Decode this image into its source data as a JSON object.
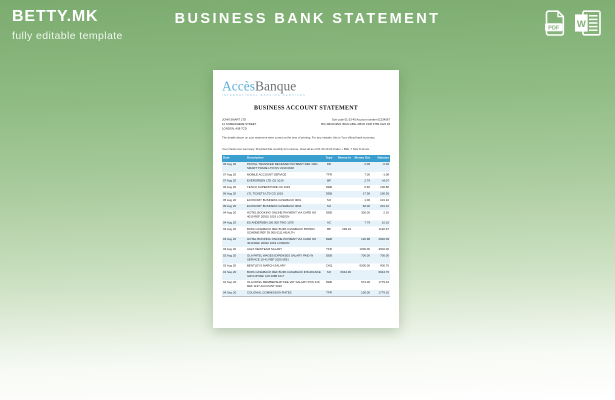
{
  "header": {
    "brand_name": "BETTY.MK",
    "brand_tagline": "fully editable template",
    "page_title": "BUSINESS BANK STATEMENT",
    "icons": {
      "pdf": "pdf-download-icon",
      "word": "word-download-icon"
    },
    "icon_labels": {
      "pdf": "PDF",
      "word": "W"
    }
  },
  "colors": {
    "background_top": "#7cab70",
    "background_bottom": "#ffffff",
    "table_header_blue": "#3a9ecf",
    "logo_blue": "#5fafd8",
    "text_white": "#ffffff"
  },
  "document": {
    "bank_name_accent": "Accès",
    "bank_name_rest": "Banque",
    "bank_tagline": "INTERNATIONAL BANKING SERVICES",
    "statement_title": "BUSINESS ACCOUNT STATEMENT",
    "account_holder_lines": [
      "JOHN SMART LTD",
      "12 SOMEWHERE STREET",
      "LONDON, A08 7CD"
    ],
    "account_meta_lines": [
      "Sort code 01-23-45    Account number 01234567",
      "BIC ABCDGB21   IBAN GB21 ABCD 2345 6789 0123 45"
    ],
    "intro_line": "The details above on your statement were correct at the time of printing. For any mistake, this is Your official bank summary.",
    "summary_line": "Your check over summary: Provided that monthly turn income, show all as of 01 09 19 20 Under + Bills, 7 Size 8.12 am",
    "table": {
      "headers": [
        "Date",
        "Description",
        "Type",
        "Money In",
        "Money Out",
        "Balance"
      ],
      "rows": [
        {
          "date": "09 Aug 20",
          "desc": "PAYPAL TRANSFER RECEIVED PAYMENT REF 1001 SMART TRADE LTD INV 2019 0918",
          "type": "DD",
          "in": "",
          "out": "2.09",
          "bal": "-0.09"
        },
        {
          "date": "07 Aug 20",
          "desc": "MOBILE ACCOUNT SERVICE",
          "type": "TFR",
          "in": "",
          "out": "7.00",
          "bal": "-1.08"
        },
        {
          "date": "07 Aug 20",
          "desc": "EVERGREEN LTD CD 1019",
          "type": "BP",
          "in": "",
          "out": "2.79",
          "bal": "+8.07"
        },
        {
          "date": "06 Aug 20",
          "desc": "TESCO SUPERSTORE CD 1019",
          "type": "DEB",
          "in": "",
          "out": "6.92",
          "bal": "100.86"
        },
        {
          "date": "06 Aug 20",
          "desc": "LTL TICKETS LTD CD 1019",
          "type": "DEB",
          "in": "",
          "out": "17.38",
          "bal": "100.36"
        },
        {
          "date": "05 Aug 20",
          "desc": "ECONOMY BUSINESS CASHBACK 0001",
          "type": "SO",
          "in": "",
          "out": "1.00",
          "bal": "101.10"
        },
        {
          "date": "05 Aug 20",
          "desc": "ECONOMY BUSINESS CASHBACK 0004",
          "type": "SO",
          "in": "",
          "out": "60.00",
          "bal": "201.10"
        },
        {
          "date": "04 Aug 20",
          "desc": "HOTEL BOOKING ONLINE PAYMENT VIA CARD NO 4019 REF 20910 1019 LONDON",
          "type": "DEB",
          "in": "",
          "out": "300.00",
          "bal": "2.10"
        },
        {
          "date": "04 Aug 20",
          "desc": "ES ANDERSEN 100 000 TWO 1070",
          "type": "AC",
          "in": "",
          "out": "7.79",
          "bal": "10.10"
        },
        {
          "date": "03 Aug 20",
          "desc": "BUPA CASHBACK REF BUPA CASHBACK PROMO SCHEME REF 39 000 0111 HEALTH",
          "type": "BP",
          "in": "299.19",
          "out": "",
          "bal": "1120.97"
        },
        {
          "date": "03 Aug 20",
          "desc": "HOTEL BOOKING ONLINE PAYMENT VIA CARD NO 4019 REF 20910 1019 LONDON",
          "type": "DEB",
          "in": "",
          "out": "120.98",
          "bal": "2902.09"
        },
        {
          "date": "03 Aug 20",
          "desc": "ALEX NEWTEAM SALARY",
          "type": "TFR",
          "in": "",
          "out": "1000.00",
          "bal": "3902.00"
        },
        {
          "date": "02 Aug 20",
          "desc": "OLA PATEL WAGES EXPENSES SALARY PAID IN SERVICE 19 41 REF 2020 0831",
          "type": "DEB",
          "in": "",
          "out": "700.00",
          "bal": "700.00"
        },
        {
          "date": "02 Aug 20",
          "desc": "BENTLEYS MARCH SALARY",
          "type": "CHQ",
          "in": "",
          "out": "6000.00",
          "bal": "900.76"
        },
        {
          "date": "01 Sep 20",
          "desc": "BUPA CASHBACK REF BUPA CASHBACK INSURANCE GROUP REF 100 0088 1017",
          "type": "SO",
          "in": "6044.00",
          "out": "",
          "bal": "6944.76"
        },
        {
          "date": "01 Sep 20",
          "desc": "OLA PATEL MEMBERSHIP FEE VAT SALARY POS 419 REF 1197 ACCOUNT 0022",
          "type": "DEB",
          "in": "",
          "out": "574.00",
          "bal": "1779.34"
        },
        {
          "date": "04 Sep 20",
          "desc": "COLONIAL COMMISSION RATES",
          "type": "TFR",
          "in": "",
          "out": "100.00",
          "bal": "1779.10"
        }
      ]
    }
  }
}
